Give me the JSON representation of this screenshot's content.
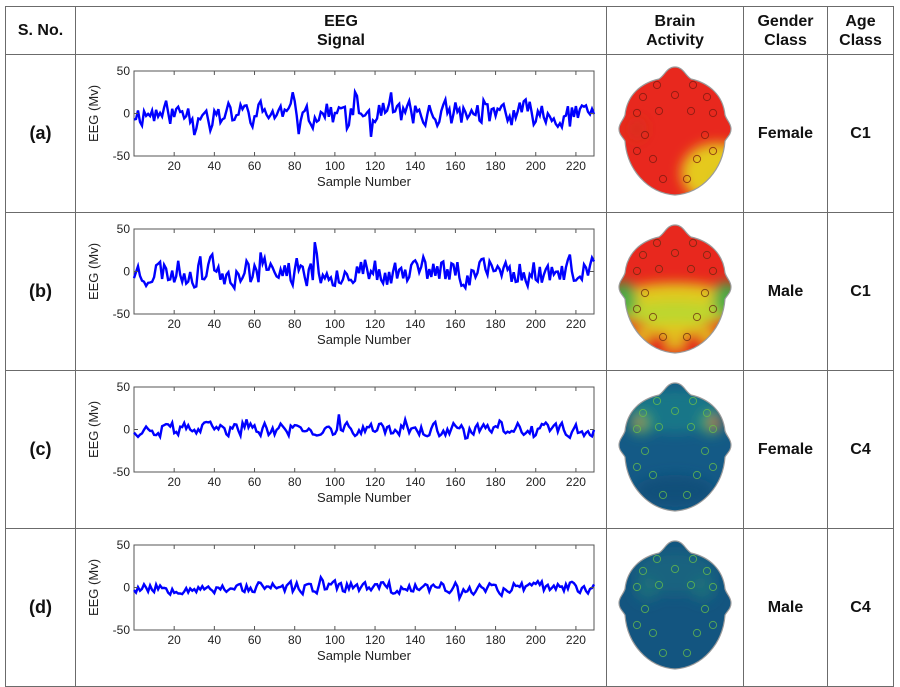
{
  "header": {
    "sno": "S. No.",
    "signal_line1": "EEG",
    "signal_line2": "Signal",
    "brain_line1": "Brain",
    "brain_line2": "Activity",
    "gender_line1": "Gender",
    "gender_line2": "Class",
    "age_line1": "Age",
    "age_line2": "Class"
  },
  "rows": [
    {
      "label": "(a)",
      "gender": "Female",
      "age": "C1",
      "head_palette": "red-dominant"
    },
    {
      "label": "(b)",
      "gender": "Male",
      "age": "C1",
      "head_palette": "red-green-mixed"
    },
    {
      "label": "(c)",
      "gender": "Female",
      "age": "C4",
      "head_palette": "blue-dominant-with-red-spots"
    },
    {
      "label": "(d)",
      "gender": "Male",
      "age": "C4",
      "head_palette": "blue-dominant"
    }
  ],
  "chart_data": [
    {
      "type": "line",
      "xlabel": "Sample Number",
      "ylabel": "EEG (Mv)",
      "xlim": [
        0,
        229
      ],
      "ylim": [
        -50,
        50
      ],
      "xticks": [
        "20",
        "40",
        "60",
        "80",
        "100",
        "120",
        "140",
        "160",
        "180",
        "200",
        "220"
      ],
      "yticks": [
        "50",
        "0",
        "-50"
      ],
      "line_color": "#0000ff",
      "series": [
        {
          "amplitude": 15,
          "seed": 11
        }
      ]
    },
    {
      "type": "line",
      "xlabel": "Sample Number",
      "ylabel": "EEG (Mv)",
      "xlim": [
        0,
        229
      ],
      "ylim": [
        -50,
        50
      ],
      "xticks": [
        "20",
        "40",
        "60",
        "80",
        "100",
        "120",
        "140",
        "160",
        "180",
        "200",
        "220"
      ],
      "yticks": [
        "50",
        "0",
        "-50"
      ],
      "line_color": "#0000ff",
      "series": [
        {
          "amplitude": 17,
          "seed": 23
        }
      ]
    },
    {
      "type": "line",
      "xlabel": "Sample Number",
      "ylabel": "EEG (Mv)",
      "xlim": [
        0,
        229
      ],
      "ylim": [
        -50,
        50
      ],
      "xticks": [
        "20",
        "40",
        "60",
        "80",
        "100",
        "120",
        "140",
        "160",
        "180",
        "200",
        "220"
      ],
      "yticks": [
        "50",
        "0",
        "-50"
      ],
      "line_color": "#0000ff",
      "series": [
        {
          "amplitude": 8,
          "seed": 37
        }
      ]
    },
    {
      "type": "line",
      "xlabel": "Sample Number",
      "ylabel": "EEG (Mv)",
      "xlim": [
        0,
        229
      ],
      "ylim": [
        -50,
        50
      ],
      "xticks": [
        "20",
        "40",
        "60",
        "80",
        "100",
        "120",
        "140",
        "160",
        "180",
        "200",
        "220"
      ],
      "yticks": [
        "50",
        "0",
        "-50"
      ],
      "line_color": "#0000ff",
      "series": [
        {
          "amplitude": 7,
          "seed": 53
        }
      ]
    }
  ]
}
